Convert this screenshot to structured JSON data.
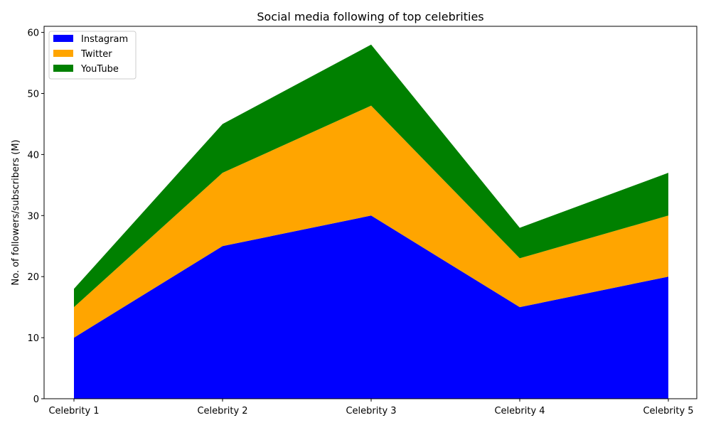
{
  "chart_data": {
    "type": "area",
    "stacked": true,
    "title": "Social media following of top celebrities",
    "xlabel": "",
    "ylabel": "No. of followers/subscribers (M)",
    "categories": [
      "Celebrity 1",
      "Celebrity 2",
      "Celebrity 3",
      "Celebrity 4",
      "Celebrity 5"
    ],
    "series": [
      {
        "name": "Instagram",
        "values": [
          10,
          25,
          30,
          15,
          20
        ],
        "color": "#0000ff"
      },
      {
        "name": "Twitter",
        "values": [
          5,
          12,
          18,
          8,
          10
        ],
        "color": "#ffa500"
      },
      {
        "name": "YouTube",
        "values": [
          3,
          8,
          10,
          5,
          7
        ],
        "color": "#008000"
      }
    ],
    "ylim": [
      0,
      61
    ],
    "yticks": [
      "0",
      "10",
      "20",
      "30",
      "40",
      "50",
      "60"
    ],
    "grid": false,
    "legend_position": "top-left"
  }
}
